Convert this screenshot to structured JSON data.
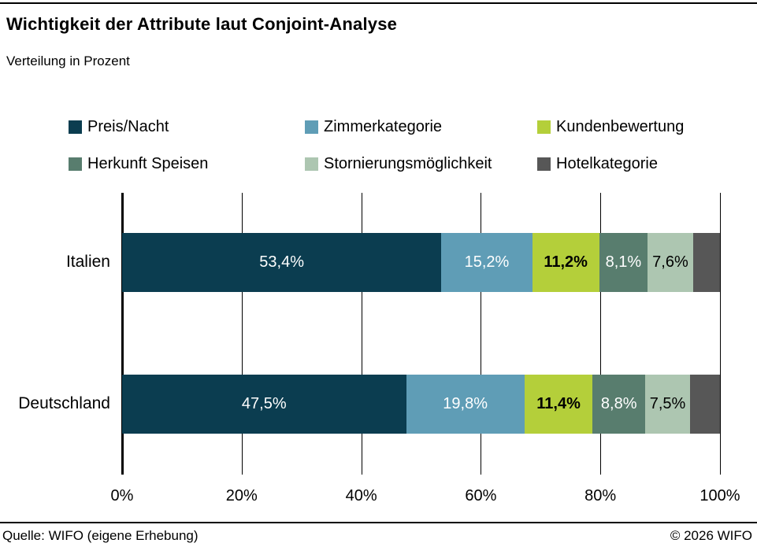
{
  "header": {
    "title": "Wichtigkeit der Attribute laut Conjoint-Analyse",
    "subtitle": "Verteilung in Prozent"
  },
  "chart_data": {
    "type": "bar",
    "stacked": true,
    "orientation": "horizontal",
    "categories": [
      "Italien",
      "Deutschland"
    ],
    "series": [
      {
        "name": "Preis/Nacht",
        "color": "#0b3d50",
        "values": [
          53.4,
          47.5
        ],
        "display_labels": [
          "53,4%",
          "47,5%"
        ],
        "label_color": "#ffffff",
        "label_weight": "normal"
      },
      {
        "name": "Zimmerkategorie",
        "color": "#5f9db6",
        "values": [
          15.2,
          19.8
        ],
        "display_labels": [
          "15,2%",
          "19,8%"
        ],
        "label_color": "#ffffff",
        "label_weight": "normal"
      },
      {
        "name": "Kundenbewertung",
        "color": "#b4cf3a",
        "values": [
          11.2,
          11.4
        ],
        "display_labels": [
          "11,2%",
          "11,4%"
        ],
        "label_color": "#000000",
        "label_weight": "bold"
      },
      {
        "name": "Herkunft Speisen",
        "color": "#587d6e",
        "values": [
          8.1,
          8.8
        ],
        "display_labels": [
          "8,1%",
          "8,8%"
        ],
        "label_color": "#ffffff",
        "label_weight": "normal"
      },
      {
        "name": "Stornierungsmöglichkeit",
        "color": "#adc6b1",
        "values": [
          7.6,
          7.5
        ],
        "display_labels": [
          "7,6%",
          "7,5%"
        ],
        "label_color": "#000000",
        "label_weight": "normal"
      },
      {
        "name": "Hotelkategorie",
        "color": "#575757",
        "values": [
          4.5,
          5.0
        ],
        "display_labels": [
          "",
          ""
        ],
        "label_color": "#ffffff",
        "label_weight": "normal"
      }
    ],
    "x_ticks": [
      "0%",
      "20%",
      "40%",
      "60%",
      "80%",
      "100%"
    ],
    "xlim": [
      0,
      100
    ],
    "grid": true,
    "legend_position": "top"
  },
  "footer": {
    "source": "Quelle: WIFO (eigene Erhebung)",
    "copyright": "© 2026 WIFO"
  }
}
